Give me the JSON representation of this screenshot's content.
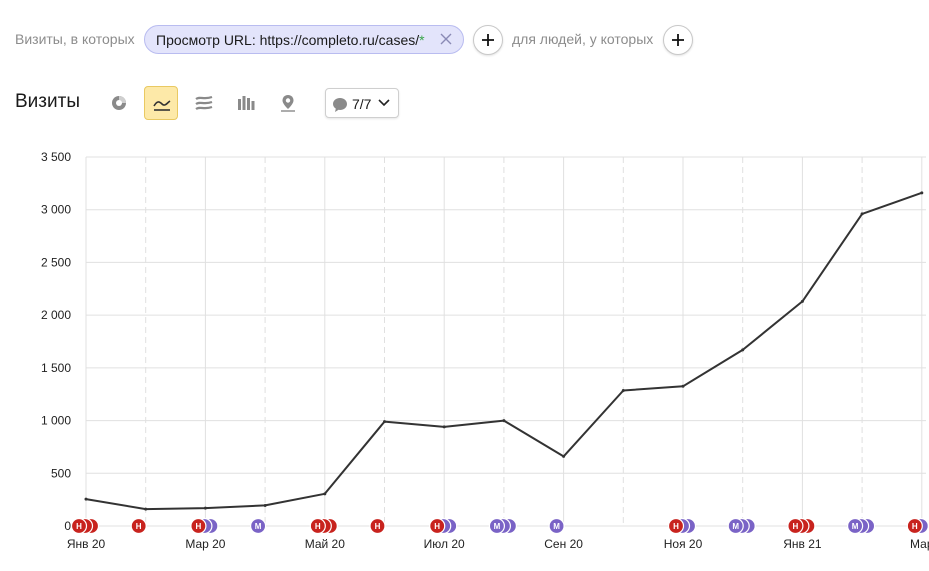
{
  "filter": {
    "prefix": "Визиты, в которых",
    "chip_label": "Просмотр URL: https://completo.ru/cases/",
    "chip_suffix": "*",
    "people_text": "для людей, у которых"
  },
  "toolbar": {
    "title": "Визиты",
    "icons": [
      "pie-chart-icon",
      "line-chart-icon",
      "area-chart-icon",
      "bar-chart-icon",
      "map-icon"
    ],
    "active_icon": "line-chart-icon",
    "notes_label": "7/7"
  },
  "colors": {
    "line": "#333333",
    "grid": "#e0e0e0",
    "marker_red": "#c8231e",
    "marker_purple": "#7a63c6",
    "active_bg": "#fde9a8"
  },
  "chart_data": {
    "type": "line",
    "title": "",
    "xlabel": "",
    "ylabel": "",
    "ylim": [
      0,
      3500
    ],
    "yticks": [
      0,
      500,
      1000,
      1500,
      2000,
      2500,
      3000,
      3500
    ],
    "ytick_labels": [
      "0",
      "500",
      "1 000",
      "1 500",
      "2 000",
      "2 500",
      "3 000",
      "3 500"
    ],
    "xtick_labels": [
      "Янв 20",
      "Мар 20",
      "Май 20",
      "Июл 20",
      "Сен 20",
      "Ноя 20",
      "Янв 21",
      "Мар"
    ],
    "x": [
      "Янв 20",
      "Фев 20",
      "Мар 20",
      "Апр 20",
      "Май 20",
      "Июн 20",
      "Июл 20",
      "Авг 20",
      "Сен 20",
      "Окт 20",
      "Ноя 20",
      "Дек 20",
      "Янв 21",
      "Фев 21",
      "Мар 21"
    ],
    "series": [
      {
        "values": [
          255,
          160,
          170,
          195,
          305,
          990,
          940,
          1000,
          660,
          1285,
          1325,
          1670,
          2130,
          2960,
          3160
        ]
      }
    ],
    "grid": true,
    "annotations": [
      {
        "month": "Янв 20",
        "markers": [
          "Н",
          "Н",
          "Н"
        ]
      },
      {
        "month": "Фев 20",
        "markers": [
          "Н"
        ]
      },
      {
        "month": "Мар 20",
        "markers": [
          "Н",
          "М",
          "М"
        ]
      },
      {
        "month": "Апр 20",
        "markers": [
          "М"
        ]
      },
      {
        "month": "Май 20",
        "markers": [
          "Н",
          "Н",
          "Н"
        ]
      },
      {
        "month": "Июн 20",
        "markers": [
          "Н"
        ]
      },
      {
        "month": "Июл 20",
        "markers": [
          "Н",
          "М",
          "М"
        ]
      },
      {
        "month": "Авг 20",
        "markers": [
          "М",
          "М",
          "М"
        ]
      },
      {
        "month": "Сен 20",
        "markers": [
          "М"
        ]
      },
      {
        "month": "Ноя 20",
        "markers": [
          "Н",
          "М",
          "М"
        ]
      },
      {
        "month": "Дек 20",
        "markers": [
          "М",
          "М",
          "М"
        ]
      },
      {
        "month": "Янв 21",
        "markers": [
          "Н",
          "Н",
          "Н"
        ]
      },
      {
        "month": "Фев 21",
        "markers": [
          "М",
          "М",
          "М"
        ]
      },
      {
        "month": "Мар 21",
        "markers": [
          "Н",
          "М"
        ]
      }
    ]
  }
}
